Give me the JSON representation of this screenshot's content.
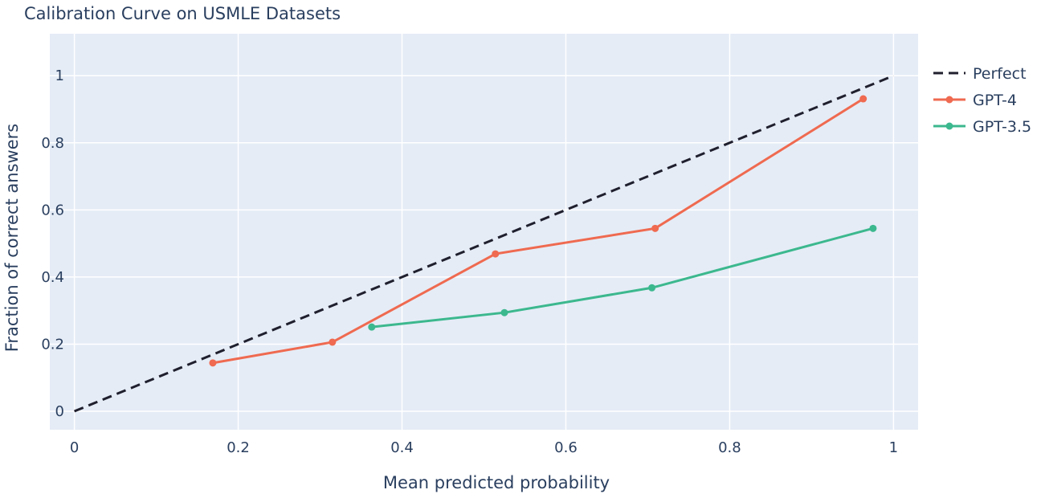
{
  "chart_data": {
    "type": "line",
    "title": "Calibration Curve on USMLE Datasets",
    "xlabel": "Mean predicted probability",
    "ylabel": "Fraction of correct answers",
    "xlim": [
      -0.03,
      1.03
    ],
    "ylim": [
      -0.055,
      1.125
    ],
    "xticks": [
      0,
      0.2,
      0.4,
      0.6,
      0.8,
      1
    ],
    "xtick_labels": [
      "0",
      "0.2",
      "0.4",
      "0.6",
      "0.8",
      "1"
    ],
    "yticks": [
      0,
      0.2,
      0.4,
      0.6,
      0.8,
      1
    ],
    "ytick_labels": [
      "0",
      "0.2",
      "0.4",
      "0.6",
      "0.8",
      "1"
    ],
    "grid": true,
    "legend": "right-top",
    "series": [
      {
        "name": "Perfect",
        "color": "#1f1f2e",
        "dash": true,
        "markers": false,
        "x": [
          0,
          1
        ],
        "y": [
          0,
          1
        ]
      },
      {
        "name": "GPT-4",
        "color": "#ef6a50",
        "dash": false,
        "markers": true,
        "x": [
          0.169,
          0.315,
          0.514,
          0.709,
          0.963
        ],
        "y": [
          0.144,
          0.206,
          0.469,
          0.545,
          0.931
        ]
      },
      {
        "name": "GPT-3.5",
        "color": "#3cb88e",
        "dash": false,
        "markers": true,
        "x": [
          0.363,
          0.525,
          0.705,
          0.975
        ],
        "y": [
          0.251,
          0.294,
          0.368,
          0.545
        ]
      }
    ]
  }
}
